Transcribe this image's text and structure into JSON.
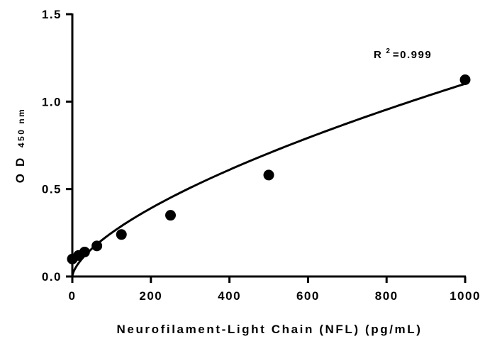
{
  "chart_data": {
    "type": "scatter",
    "xlabel": "Neurofilament-Light Chain (NFL) (pg/mL)",
    "ylabel": {
      "main": "O D",
      "subscript": "450 nm"
    },
    "xlim": [
      0,
      1000
    ],
    "ylim": [
      0,
      1.5
    ],
    "xticks": [
      "0",
      "200",
      "400",
      "600",
      "800",
      "1000"
    ],
    "yticks": [
      "0.0",
      "0.5",
      "1.0",
      "1.5"
    ],
    "grid": false,
    "annotation": {
      "prefix": "R",
      "superscript": "2",
      "suffix": "=0.999"
    },
    "series": [
      {
        "points": [
          {
            "x": 0,
            "y": 0.1
          },
          {
            "x": 15.6,
            "y": 0.12
          },
          {
            "x": 31.25,
            "y": 0.14
          },
          {
            "x": 62.5,
            "y": 0.175
          },
          {
            "x": 125,
            "y": 0.24
          },
          {
            "x": 250,
            "y": 0.35
          },
          {
            "x": 500,
            "y": 0.58
          },
          {
            "x": 1000,
            "y": 1.125
          }
        ]
      }
    ],
    "fit_curve": {
      "type": "power",
      "a": 0.0128,
      "b": 0.645
    },
    "colors": {
      "points": "#000000",
      "line": "#000000",
      "axes": "#000000"
    }
  }
}
